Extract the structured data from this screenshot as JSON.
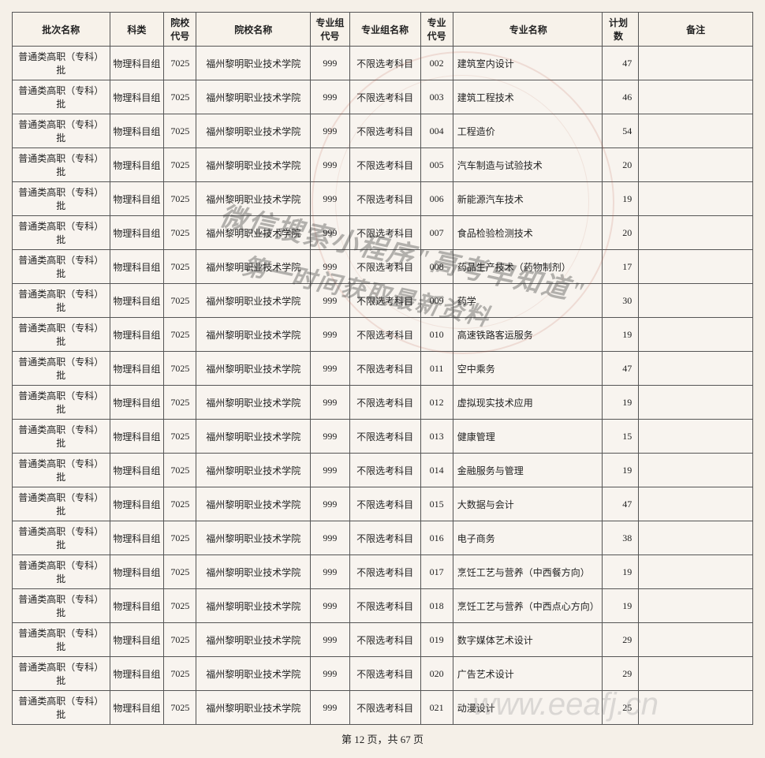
{
  "columns": [
    "批次名称",
    "科类",
    "院校代号",
    "院校名称",
    "专业组代号",
    "专业组名称",
    "专业代号",
    "专业名称",
    "计划数",
    "备注"
  ],
  "batch": "普通类高职（专科）批",
  "category": "物理科目组",
  "school_code": "7025",
  "school_name": "福州黎明职业技术学院",
  "group_code": "999",
  "group_name": "不限选考科目",
  "rows": [
    {
      "mc": "002",
      "mn": "建筑室内设计",
      "cnt": "47"
    },
    {
      "mc": "003",
      "mn": "建筑工程技术",
      "cnt": "46"
    },
    {
      "mc": "004",
      "mn": "工程造价",
      "cnt": "54"
    },
    {
      "mc": "005",
      "mn": "汽车制造与试验技术",
      "cnt": "20"
    },
    {
      "mc": "006",
      "mn": "新能源汽车技术",
      "cnt": "19"
    },
    {
      "mc": "007",
      "mn": "食品检验检测技术",
      "cnt": "20"
    },
    {
      "mc": "008",
      "mn": "药品生产技术（药物制剂）",
      "cnt": "17"
    },
    {
      "mc": "009",
      "mn": "药学",
      "cnt": "30"
    },
    {
      "mc": "010",
      "mn": "高速铁路客运服务",
      "cnt": "19"
    },
    {
      "mc": "011",
      "mn": "空中乘务",
      "cnt": "47"
    },
    {
      "mc": "012",
      "mn": "虚拟现实技术应用",
      "cnt": "19"
    },
    {
      "mc": "013",
      "mn": "健康管理",
      "cnt": "15"
    },
    {
      "mc": "014",
      "mn": "金融服务与管理",
      "cnt": "19"
    },
    {
      "mc": "015",
      "mn": "大数据与会计",
      "cnt": "47"
    },
    {
      "mc": "016",
      "mn": "电子商务",
      "cnt": "38"
    },
    {
      "mc": "017",
      "mn": "烹饪工艺与营养（中西餐方向）",
      "cnt": "19"
    },
    {
      "mc": "018",
      "mn": "烹饪工艺与营养（中西点心方向）",
      "cnt": "19"
    },
    {
      "mc": "019",
      "mn": "数字媒体艺术设计",
      "cnt": "29"
    },
    {
      "mc": "020",
      "mn": "广告艺术设计",
      "cnt": "29"
    },
    {
      "mc": "021",
      "mn": "动漫设计",
      "cnt": "25"
    }
  ],
  "pager": "第 12 页，共 67 页",
  "watermark": {
    "line1": "微信搜索小程序\"高考早知道\"",
    "line2": "第一时间获取最新资料",
    "url": "www.eeafj.cn"
  }
}
